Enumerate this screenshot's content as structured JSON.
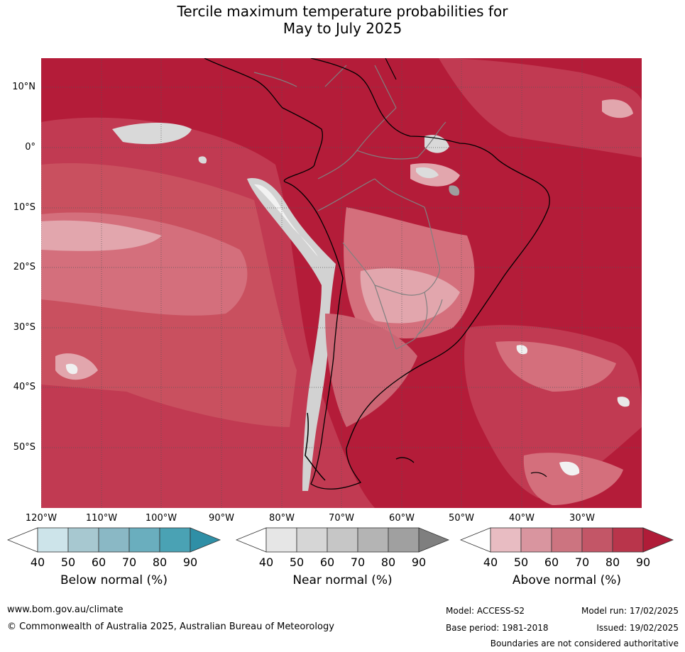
{
  "title": {
    "line1": "Tercile maximum temperature probabilities for",
    "line2": "May to July 2025"
  },
  "map": {
    "lat_labels": [
      "10°N",
      "0°",
      "10°S",
      "20°S",
      "30°S",
      "40°S",
      "50°S"
    ],
    "lon_labels": [
      "120°W",
      "110°W",
      "100°W",
      "90°W",
      "80°W",
      "70°W",
      "60°W",
      "50°W",
      "40°W",
      "30°W"
    ]
  },
  "colorbars": [
    {
      "title": "Below normal (%)",
      "ticks": [
        "40",
        "50",
        "60",
        "70",
        "80",
        "90"
      ],
      "colors": [
        "#ffffff",
        "#cde4ea",
        "#a7c8d0",
        "#8ab8c5",
        "#6aaebe",
        "#4aa2b4",
        "#2f8fa6"
      ]
    },
    {
      "title": "Near normal (%)",
      "ticks": [
        "40",
        "50",
        "60",
        "70",
        "80",
        "90"
      ],
      "colors": [
        "#ffffff",
        "#e6e6e6",
        "#d6d6d6",
        "#c6c6c6",
        "#b4b4b4",
        "#a0a0a0",
        "#7f7f7f"
      ]
    },
    {
      "title": "Above normal (%)",
      "ticks": [
        "40",
        "50",
        "60",
        "70",
        "80",
        "90"
      ],
      "colors": [
        "#ffffff",
        "#e8bcc2",
        "#d9959f",
        "#cc7480",
        "#c35667",
        "#b9354b",
        "#b01c38"
      ]
    }
  ],
  "footer": {
    "website": "www.bom.gov.au/climate",
    "copyright": "© Commonwealth of Australia 2025, Australian Bureau of Meteorology",
    "model": "Model: ACCESS-S2",
    "model_run": "Model run: 17/02/2025",
    "base_period": "Base period: 1981-2018",
    "issued": "Issued: 19/02/2025",
    "disclaimer": "Boundaries are not considered authoritative"
  }
}
